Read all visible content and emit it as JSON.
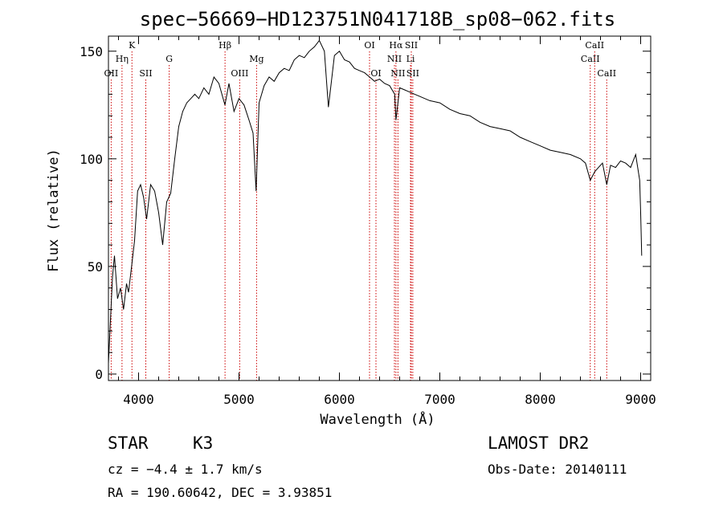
{
  "chart_data": {
    "type": "line",
    "title": "spec−56669−HD123751N041718B_sp08−062.fits",
    "xlabel": "Wavelength (Å)",
    "ylabel": "Flux (relative)",
    "xlim": [
      3700,
      9100
    ],
    "ylim": [
      -3,
      157
    ],
    "x_ticks": [
      4000,
      5000,
      6000,
      7000,
      8000,
      9000
    ],
    "y_ticks": [
      0,
      50,
      100,
      150
    ],
    "grid": false,
    "series": [
      {
        "color": "#000000",
        "x": [
          3700,
          3740,
          3760,
          3790,
          3820,
          3850,
          3880,
          3900,
          3930,
          3960,
          3990,
          4020,
          4050,
          4080,
          4120,
          4160,
          4200,
          4240,
          4280,
          4320,
          4360,
          4400,
          4440,
          4480,
          4520,
          4560,
          4600,
          4650,
          4700,
          4750,
          4800,
          4860,
          4900,
          4950,
          5000,
          5050,
          5100,
          5140,
          5170,
          5200,
          5250,
          5300,
          5350,
          5400,
          5450,
          5500,
          5550,
          5600,
          5650,
          5700,
          5750,
          5800,
          5850,
          5890,
          5950,
          6000,
          6050,
          6100,
          6150,
          6200,
          6250,
          6300,
          6350,
          6400,
          6450,
          6500,
          6550,
          6563,
          6600,
          6650,
          6700,
          6750,
          6800,
          6900,
          7000,
          7100,
          7200,
          7300,
          7400,
          7500,
          7600,
          7700,
          7800,
          7900,
          8000,
          8100,
          8200,
          8300,
          8400,
          8450,
          8498,
          8542,
          8580,
          8620,
          8662,
          8700,
          8750,
          8800,
          8850,
          8900,
          8950,
          8990,
          9000,
          9010
        ],
        "values": [
          5,
          45,
          55,
          35,
          40,
          30,
          42,
          38,
          50,
          62,
          85,
          88,
          82,
          72,
          88,
          85,
          75,
          60,
          80,
          84,
          100,
          115,
          122,
          126,
          128,
          130,
          128,
          133,
          130,
          138,
          135,
          125,
          135,
          122,
          128,
          125,
          118,
          112,
          85,
          126,
          134,
          138,
          136,
          140,
          142,
          141,
          146,
          148,
          147,
          150,
          152,
          155,
          150,
          124,
          148,
          150,
          146,
          145,
          142,
          141,
          140,
          138,
          136,
          137,
          135,
          134,
          130,
          118,
          133,
          132,
          131,
          130,
          129,
          127,
          126,
          123,
          121,
          120,
          117,
          115,
          114,
          113,
          110,
          108,
          106,
          104,
          103,
          102,
          100,
          98,
          90,
          94,
          96,
          98,
          88,
          97,
          96,
          99,
          98,
          96,
          102,
          90,
          75,
          55
        ]
      }
    ],
    "line_color": "#cc0000",
    "lines": [
      {
        "name": "OII",
        "x": 3727,
        "row": 3
      },
      {
        "name": "Hη",
        "x": 3835,
        "row": 2
      },
      {
        "name": "K",
        "x": 3934,
        "row": 1
      },
      {
        "name": "SII",
        "x": 4072,
        "row": 3
      },
      {
        "name": "G",
        "x": 4305,
        "row": 2
      },
      {
        "name": "Hβ",
        "x": 4861,
        "row": 1
      },
      {
        "name": "OIII",
        "x": 5007,
        "row": 3
      },
      {
        "name": "Mg",
        "x": 5175,
        "row": 2
      },
      {
        "name": "OI",
        "x": 6300,
        "row": 1
      },
      {
        "name": "OI",
        "x": 6364,
        "row": 3
      },
      {
        "name": "Hα",
        "x": 6563,
        "row": 1
      },
      {
        "name": "NII",
        "x": 6548,
        "row": 2
      },
      {
        "name": "NII",
        "x": 6583,
        "row": 3
      },
      {
        "name": "SII",
        "x": 6716,
        "row": 1
      },
      {
        "name": "Li",
        "x": 6708,
        "row": 2
      },
      {
        "name": "SII",
        "x": 6731,
        "row": 3
      },
      {
        "name": "CaII",
        "x": 8498,
        "row": 2
      },
      {
        "name": "CaII",
        "x": 8542,
        "row": 1
      },
      {
        "name": "CaII",
        "x": 8662,
        "row": 3
      }
    ]
  },
  "info": {
    "class_label": "STAR",
    "subclass": "K3",
    "survey": "LAMOST DR2",
    "cz": "cz = −4.4 ± 1.7 km/s",
    "obs_date": "Obs-Date: 20140111",
    "radec": "RA = 190.60642, DEC =   3.93851"
  }
}
